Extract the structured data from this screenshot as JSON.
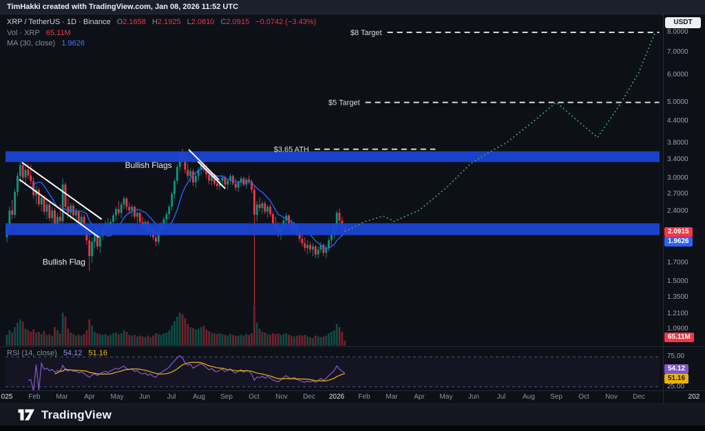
{
  "top_bar": {
    "attribution": "TimHakki created with TradingView.com, Jan 08, 2026 11:52 UTC"
  },
  "toolbar": {
    "currency_button": "USDT"
  },
  "legend": {
    "title": "XRP / TetherUS · 1D · Binance",
    "ohlc": [
      {
        "k": "O",
        "v": "2.1658"
      },
      {
        "k": "H",
        "v": "2.1925"
      },
      {
        "k": "L",
        "v": "2.0810"
      },
      {
        "k": "C",
        "v": "2.0915"
      }
    ],
    "change": "−0.0742 (−3.43%)",
    "volume_label": "Vol · XRP",
    "volume_value": "65.11M",
    "ma_label": "MA (30, close)",
    "ma_value": "1.9626",
    "rsi_label": "RSI (14, close)",
    "rsi_value": "54.12",
    "rsi_ma_value": "51.16"
  },
  "axis_badges": [
    {
      "text": "2.0915",
      "kind": "price",
      "value": 2.0915,
      "bg": "#f23645",
      "fg": "#ffffff"
    },
    {
      "text": "1.9626",
      "kind": "price",
      "value": 1.9626,
      "bg": "#2962ff",
      "fg": "#ffffff"
    },
    {
      "text": "65.11M",
      "kind": "volume",
      "value": 0,
      "bg": "#f23645",
      "fg": "#ffffff"
    },
    {
      "text": "54.12",
      "kind": "rsi",
      "value": 54.12,
      "bg": "#7e57c2",
      "fg": "#ffffff"
    },
    {
      "text": "51.16",
      "kind": "rsi",
      "value": 51.16,
      "bg": "#e8b40b",
      "fg": "#15181f"
    }
  ],
  "footer": {
    "brand": "TradingView"
  },
  "chart_data": {
    "type": "candlestick",
    "title": "XRP / TetherUS 1D Binance",
    "scale": "log",
    "history_months": 12.3,
    "colors": {
      "up": "#089981",
      "down": "#f23645",
      "ma": "#2962ff",
      "projection": "#43a15f",
      "band": "#1a46d8",
      "rsi": "#7e57c2",
      "rsi_ma": "#f0b90b",
      "target": "#d7dae0"
    },
    "y_ticks": [
      {
        "label": "8.0000",
        "value": 8.0
      },
      {
        "label": "7.0000",
        "value": 7.0
      },
      {
        "label": "6.0000",
        "value": 6.0
      },
      {
        "label": "5.0000",
        "value": 5.0
      },
      {
        "label": "4.4000",
        "value": 4.4
      },
      {
        "label": "3.8000",
        "value": 3.8
      },
      {
        "label": "3.4000",
        "value": 3.4
      },
      {
        "label": "3.0000",
        "value": 3.0
      },
      {
        "label": "2.7000",
        "value": 2.7
      },
      {
        "label": "2.4000",
        "value": 2.4
      },
      {
        "label": "1.7000",
        "value": 1.7
      },
      {
        "label": "1.5000",
        "value": 1.5
      },
      {
        "label": "1.3500",
        "value": 1.35
      },
      {
        "label": "1.2100",
        "value": 1.21
      },
      {
        "label": "1.0900",
        "value": 1.09
      }
    ],
    "x_ticks": [
      {
        "m": 0,
        "label": "025",
        "year": true
      },
      {
        "m": 1,
        "label": "Feb"
      },
      {
        "m": 2,
        "label": "Mar"
      },
      {
        "m": 3,
        "label": "Apr"
      },
      {
        "m": 4,
        "label": "May"
      },
      {
        "m": 5,
        "label": "Jun"
      },
      {
        "m": 6,
        "label": "Jul"
      },
      {
        "m": 7,
        "label": "Aug"
      },
      {
        "m": 8,
        "label": "Sep"
      },
      {
        "m": 9,
        "label": "Oct"
      },
      {
        "m": 10,
        "label": "Nov"
      },
      {
        "m": 11,
        "label": "Dec"
      },
      {
        "m": 12,
        "label": "2026",
        "year": true
      },
      {
        "m": 13,
        "label": "Feb"
      },
      {
        "m": 14,
        "label": "Mar"
      },
      {
        "m": 15,
        "label": "Apr"
      },
      {
        "m": 16,
        "label": "May"
      },
      {
        "m": 17,
        "label": "Jun"
      },
      {
        "m": 18,
        "label": "Jul"
      },
      {
        "m": 19,
        "label": "Aug"
      },
      {
        "m": 20,
        "label": "Sep"
      },
      {
        "m": 21,
        "label": "Oct"
      },
      {
        "m": 22,
        "label": "Nov"
      },
      {
        "m": 23,
        "label": "Dec"
      },
      {
        "m": 25,
        "label": "202",
        "year": true
      }
    ],
    "bands": [
      {
        "from": 3.35,
        "to": 3.6
      },
      {
        "from": 2.05,
        "to": 2.22
      }
    ],
    "levels": [
      {
        "label": "$8 Target",
        "price": 8.0,
        "from_month": 13.85,
        "to_month": 23.75
      },
      {
        "label": "$5 Target",
        "price": 5.0,
        "from_month": 13.05,
        "to_month": 23.75
      },
      {
        "label": "$3.65 ATH",
        "price": 3.65,
        "from_month": 11.2,
        "to_month": 15.6
      }
    ],
    "projection": [
      [
        12.3,
        2.1
      ],
      [
        13.0,
        2.24
      ],
      [
        13.7,
        2.33
      ],
      [
        14.1,
        2.25
      ],
      [
        15.0,
        2.42
      ],
      [
        16.0,
        2.82
      ],
      [
        16.9,
        3.32
      ],
      [
        17.4,
        3.52
      ],
      [
        18.2,
        3.82
      ],
      [
        19.2,
        4.42
      ],
      [
        20.0,
        5.0
      ],
      [
        20.8,
        4.4
      ],
      [
        21.5,
        3.95
      ],
      [
        22.3,
        4.9
      ],
      [
        23.0,
        6.1
      ],
      [
        23.6,
        8.0
      ]
    ],
    "annotations": {
      "labels": [
        {
          "text": "Bullish Flags",
          "month": 4.3,
          "price": 3.22
        },
        {
          "text": "Bullish Flag",
          "month": 1.3,
          "price": 1.68
        }
      ],
      "lines": [
        {
          "x1": 0.55,
          "p1": 3.34,
          "x2": 3.45,
          "p2": 2.28
        },
        {
          "x1": 0.45,
          "p1": 2.98,
          "x2": 3.35,
          "p2": 2.02
        },
        {
          "x1": 6.62,
          "p1": 3.64,
          "x2": 7.72,
          "p2": 2.97
        },
        {
          "x1": 6.95,
          "p1": 3.36,
          "x2": 7.95,
          "p2": 2.8
        }
      ]
    },
    "rsi": {
      "ticks": [
        {
          "label": "75.00",
          "value": 75
        },
        {
          "label": "25.00",
          "value": 25
        }
      ],
      "levels": [
        75,
        25
      ]
    },
    "candles": [
      [
        2.02,
        2.2,
        1.95,
        2.16,
        140
      ],
      [
        2.16,
        2.48,
        2.1,
        2.42,
        200
      ],
      [
        2.42,
        2.6,
        2.28,
        2.35,
        170
      ],
      [
        2.35,
        2.8,
        2.3,
        2.74,
        240
      ],
      [
        2.74,
        3.12,
        2.66,
        3.05,
        300
      ],
      [
        3.05,
        3.4,
        2.92,
        3.28,
        340
      ],
      [
        3.28,
        3.38,
        2.95,
        3.02,
        310
      ],
      [
        3.02,
        3.25,
        2.85,
        3.18,
        220
      ],
      [
        3.18,
        3.32,
        2.98,
        3.06,
        200
      ],
      [
        3.06,
        3.3,
        2.88,
        2.95,
        180
      ],
      [
        2.95,
        3.02,
        2.62,
        2.68,
        210
      ],
      [
        2.68,
        2.85,
        2.52,
        2.78,
        170
      ],
      [
        2.78,
        2.82,
        2.48,
        2.52,
        180
      ],
      [
        2.52,
        2.7,
        2.4,
        2.64,
        150
      ],
      [
        2.64,
        2.68,
        2.35,
        2.4,
        190
      ],
      [
        2.4,
        2.58,
        2.28,
        2.52,
        140
      ],
      [
        2.52,
        2.56,
        2.25,
        2.3,
        150
      ],
      [
        2.3,
        2.48,
        2.18,
        2.42,
        130
      ],
      [
        2.42,
        2.46,
        2.15,
        2.2,
        240
      ],
      [
        2.2,
        2.38,
        2.05,
        2.32,
        200
      ],
      [
        2.32,
        2.52,
        2.2,
        2.25,
        160
      ],
      [
        2.25,
        3.0,
        2.2,
        2.88,
        430
      ],
      [
        2.88,
        2.92,
        2.42,
        2.48,
        380
      ],
      [
        2.48,
        2.62,
        2.3,
        2.38,
        220
      ],
      [
        2.38,
        2.55,
        2.28,
        2.5,
        170
      ],
      [
        2.5,
        2.54,
        2.3,
        2.34,
        150
      ],
      [
        2.34,
        2.46,
        2.22,
        2.4,
        130
      ],
      [
        2.4,
        2.44,
        2.18,
        2.22,
        140
      ],
      [
        2.22,
        2.38,
        2.1,
        2.32,
        130
      ],
      [
        2.32,
        2.36,
        2.12,
        2.16,
        150
      ],
      [
        2.16,
        2.2,
        1.92,
        1.98,
        200
      ],
      [
        1.98,
        2.08,
        1.61,
        1.78,
        340
      ],
      [
        1.78,
        2.02,
        1.7,
        1.96,
        260
      ],
      [
        1.96,
        2.12,
        1.88,
        2.06,
        180
      ],
      [
        2.06,
        2.1,
        1.86,
        1.9,
        160
      ],
      [
        1.9,
        2.08,
        1.82,
        2.04,
        150
      ],
      [
        2.04,
        2.18,
        1.98,
        2.14,
        140
      ],
      [
        2.14,
        2.26,
        2.05,
        2.22,
        150
      ],
      [
        2.22,
        2.3,
        2.08,
        2.12,
        130
      ],
      [
        2.12,
        2.28,
        2.06,
        2.24,
        140
      ],
      [
        2.24,
        2.38,
        2.16,
        2.34,
        160
      ],
      [
        2.34,
        2.48,
        2.26,
        2.44,
        170
      ],
      [
        2.44,
        2.58,
        2.34,
        2.38,
        150
      ],
      [
        2.38,
        2.56,
        2.3,
        2.52,
        160
      ],
      [
        2.52,
        2.66,
        2.44,
        2.62,
        200
      ],
      [
        2.62,
        2.65,
        2.42,
        2.48,
        180
      ],
      [
        2.48,
        2.56,
        2.36,
        2.42,
        140
      ],
      [
        2.42,
        2.52,
        2.32,
        2.48,
        130
      ],
      [
        2.48,
        2.5,
        2.28,
        2.32,
        140
      ],
      [
        2.32,
        2.42,
        2.22,
        2.38,
        120
      ],
      [
        2.38,
        2.4,
        2.2,
        2.24,
        130
      ],
      [
        2.24,
        2.32,
        2.12,
        2.18,
        120
      ],
      [
        2.18,
        2.28,
        2.1,
        2.24,
        110
      ],
      [
        2.24,
        2.26,
        2.05,
        2.1,
        130
      ],
      [
        2.1,
        2.22,
        2.02,
        2.16,
        110
      ],
      [
        2.16,
        2.18,
        1.98,
        2.02,
        130
      ],
      [
        2.02,
        2.14,
        1.9,
        1.96,
        160
      ],
      [
        1.96,
        2.15,
        1.92,
        2.12,
        150
      ],
      [
        2.12,
        2.24,
        2.06,
        2.18,
        140
      ],
      [
        2.18,
        2.32,
        2.12,
        2.28,
        160
      ],
      [
        2.28,
        2.4,
        2.2,
        2.36,
        170
      ],
      [
        2.36,
        2.52,
        2.28,
        2.48,
        200
      ],
      [
        2.48,
        2.75,
        2.42,
        2.7,
        260
      ],
      [
        2.7,
        3.0,
        2.62,
        2.95,
        320
      ],
      [
        2.95,
        3.3,
        2.88,
        3.24,
        380
      ],
      [
        3.24,
        3.58,
        3.15,
        3.52,
        430
      ],
      [
        3.52,
        3.66,
        3.35,
        3.42,
        410
      ],
      [
        3.42,
        3.55,
        3.1,
        3.18,
        360
      ],
      [
        3.18,
        3.32,
        2.98,
        3.05,
        280
      ],
      [
        3.05,
        3.22,
        2.92,
        3.15,
        240
      ],
      [
        3.15,
        3.2,
        2.85,
        2.92,
        230
      ],
      [
        2.92,
        3.1,
        2.82,
        3.05,
        210
      ],
      [
        3.05,
        3.22,
        2.95,
        3.18,
        220
      ],
      [
        3.18,
        3.35,
        3.08,
        3.28,
        240
      ],
      [
        3.28,
        3.45,
        3.12,
        3.2,
        260
      ],
      [
        3.2,
        3.3,
        3.0,
        3.08,
        210
      ],
      [
        3.08,
        3.18,
        2.88,
        2.95,
        190
      ],
      [
        2.95,
        3.12,
        2.86,
        3.06,
        170
      ],
      [
        3.06,
        3.1,
        2.86,
        2.9,
        160
      ],
      [
        2.9,
        3.02,
        2.78,
        2.85,
        150
      ],
      [
        2.85,
        3.0,
        2.78,
        2.95,
        160
      ],
      [
        2.95,
        3.08,
        2.85,
        3.02,
        150
      ],
      [
        3.02,
        3.06,
        2.82,
        2.88,
        140
      ],
      [
        2.88,
        3.0,
        2.78,
        2.96,
        130
      ],
      [
        2.96,
        3.1,
        2.88,
        3.05,
        150
      ],
      [
        3.05,
        3.08,
        2.86,
        2.9,
        140
      ],
      [
        2.9,
        3.0,
        2.76,
        2.82,
        130
      ],
      [
        2.82,
        2.96,
        2.74,
        2.92,
        130
      ],
      [
        2.92,
        3.04,
        2.84,
        3.0,
        140
      ],
      [
        3.0,
        3.04,
        2.84,
        2.88,
        130
      ],
      [
        2.88,
        3.02,
        2.8,
        2.98,
        150
      ],
      [
        2.98,
        3.06,
        2.88,
        2.94,
        140
      ],
      [
        2.94,
        2.98,
        2.72,
        2.78,
        160
      ],
      [
        2.78,
        2.86,
        1.28,
        2.35,
        520
      ],
      [
        2.35,
        2.58,
        2.25,
        2.52,
        300
      ],
      [
        2.52,
        2.64,
        2.4,
        2.46,
        220
      ],
      [
        2.46,
        2.58,
        2.36,
        2.54,
        180
      ],
      [
        2.54,
        2.58,
        2.36,
        2.4,
        170
      ],
      [
        2.4,
        2.52,
        2.3,
        2.48,
        150
      ],
      [
        2.48,
        2.52,
        2.32,
        2.36,
        140
      ],
      [
        2.36,
        2.4,
        2.18,
        2.22,
        160
      ],
      [
        2.22,
        2.32,
        2.1,
        2.15,
        150
      ],
      [
        2.15,
        2.24,
        2.02,
        2.08,
        160
      ],
      [
        2.08,
        2.2,
        1.98,
        2.16,
        140
      ],
      [
        2.16,
        2.3,
        2.1,
        2.26,
        150
      ],
      [
        2.26,
        2.38,
        2.18,
        2.34,
        160
      ],
      [
        2.34,
        2.36,
        2.18,
        2.22,
        140
      ],
      [
        2.22,
        2.28,
        2.08,
        2.14,
        130
      ],
      [
        2.14,
        2.24,
        2.06,
        2.2,
        120
      ],
      [
        2.2,
        2.22,
        2.04,
        2.08,
        130
      ],
      [
        2.08,
        2.12,
        1.96,
        2.0,
        140
      ],
      [
        2.0,
        2.08,
        1.9,
        1.94,
        130
      ],
      [
        1.94,
        2.02,
        1.84,
        1.88,
        140
      ],
      [
        1.88,
        1.98,
        1.8,
        1.92,
        120
      ],
      [
        1.92,
        1.96,
        1.82,
        1.86,
        110
      ],
      [
        1.86,
        1.94,
        1.78,
        1.9,
        100
      ],
      [
        1.9,
        1.92,
        1.76,
        1.8,
        130
      ],
      [
        1.8,
        1.9,
        1.75,
        1.86,
        120
      ],
      [
        1.86,
        1.96,
        1.82,
        1.92,
        110
      ],
      [
        1.92,
        1.94,
        1.78,
        1.82,
        120
      ],
      [
        1.82,
        1.92,
        1.76,
        1.88,
        130
      ],
      [
        1.88,
        2.02,
        1.84,
        1.98,
        160
      ],
      [
        1.98,
        2.1,
        1.92,
        2.06,
        180
      ],
      [
        2.06,
        2.2,
        2.0,
        2.16,
        200
      ],
      [
        2.16,
        2.42,
        2.12,
        2.38,
        280
      ],
      [
        2.38,
        2.45,
        2.2,
        2.26,
        240
      ],
      [
        2.26,
        2.32,
        2.12,
        2.17,
        180
      ],
      [
        2.1658,
        2.1925,
        2.081,
        2.0915,
        65
      ]
    ]
  }
}
